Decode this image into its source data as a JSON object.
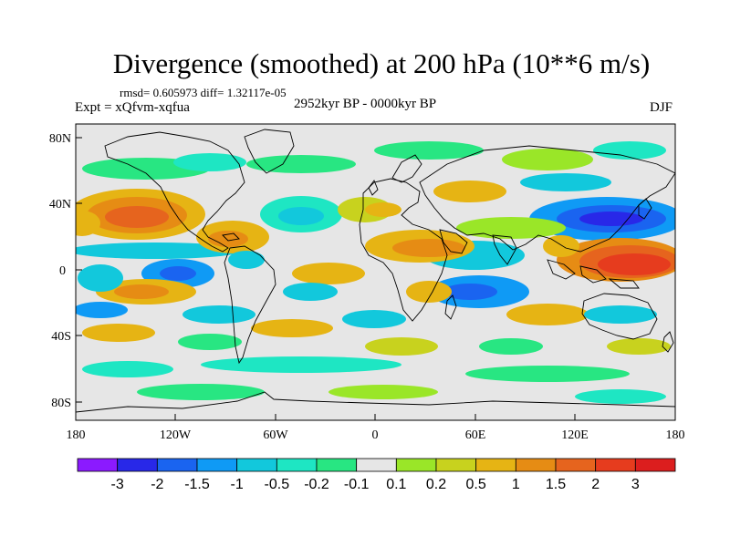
{
  "title": "Divergence (smoothed) at 200 hPa (10**6 m/s)",
  "stats": "rmsd= 0.605973  diff= 1.32117e-05",
  "experiment": "Expt = xQfvm-xqfua",
  "period": "2952kyr BP - 0000kyr BP",
  "season": "DJF",
  "lat_ticks": [
    "80N",
    "40N",
    "0",
    "40S",
    "80S"
  ],
  "lon_ticks": [
    "180",
    "120W",
    "60W",
    "0",
    "60E",
    "120E",
    "180"
  ],
  "colorbar": {
    "labels": [
      "-3",
      "-2",
      "-1.5",
      "-1",
      "-0.5",
      "-0.2",
      "-0.1",
      "0.1",
      "0.2",
      "0.5",
      "1",
      "1.5",
      "2",
      "3"
    ],
    "colors": [
      "#8b1aff",
      "#2828e8",
      "#1a64f0",
      "#0f9af5",
      "#12c8dc",
      "#1ee6c3",
      "#28e682",
      "#e6e6e6",
      "#9ae628",
      "#c8d21e",
      "#e6b414",
      "#e68c14",
      "#e6641e",
      "#e63c1e",
      "#dc1e1e"
    ]
  },
  "chart_data": {
    "type": "heatmap",
    "variable": "Divergence (smoothed) at 200 hPa",
    "units": "10**6 m/s",
    "season": "DJF",
    "x_range": [
      -180,
      180
    ],
    "y_range": [
      -90,
      90
    ],
    "levels": [
      -3,
      -2,
      -1.5,
      -1,
      -0.5,
      -0.2,
      -0.1,
      0.1,
      0.2,
      0.5,
      1,
      1.5,
      2,
      3
    ],
    "features": [
      {
        "name": "central-pacific-positive",
        "lon": -140,
        "lat": 28,
        "value": 2.2
      },
      {
        "name": "west-pacific-positive",
        "lon": 150,
        "lat": 2,
        "value": 2.8
      },
      {
        "name": "northwest-pacific-negative",
        "lon": 140,
        "lat": 30,
        "value": -2.2
      },
      {
        "name": "tropical-atlantic-positive",
        "lon": -75,
        "lat": 10,
        "value": 1.5
      },
      {
        "name": "africa-positive",
        "lon": 30,
        "lat": 10,
        "value": 1.2
      },
      {
        "name": "indian-ocean-negative",
        "lon": 60,
        "lat": -10,
        "value": -1.3
      },
      {
        "name": "south-pacific-positive",
        "lon": -140,
        "lat": -20,
        "value": 1.2
      },
      {
        "name": "north-atlantic-negative",
        "lon": -30,
        "lat": 35,
        "value": -1.0
      },
      {
        "name": "southern-ocean-negative",
        "lon": -20,
        "lat": -50,
        "value": -0.5
      }
    ]
  }
}
